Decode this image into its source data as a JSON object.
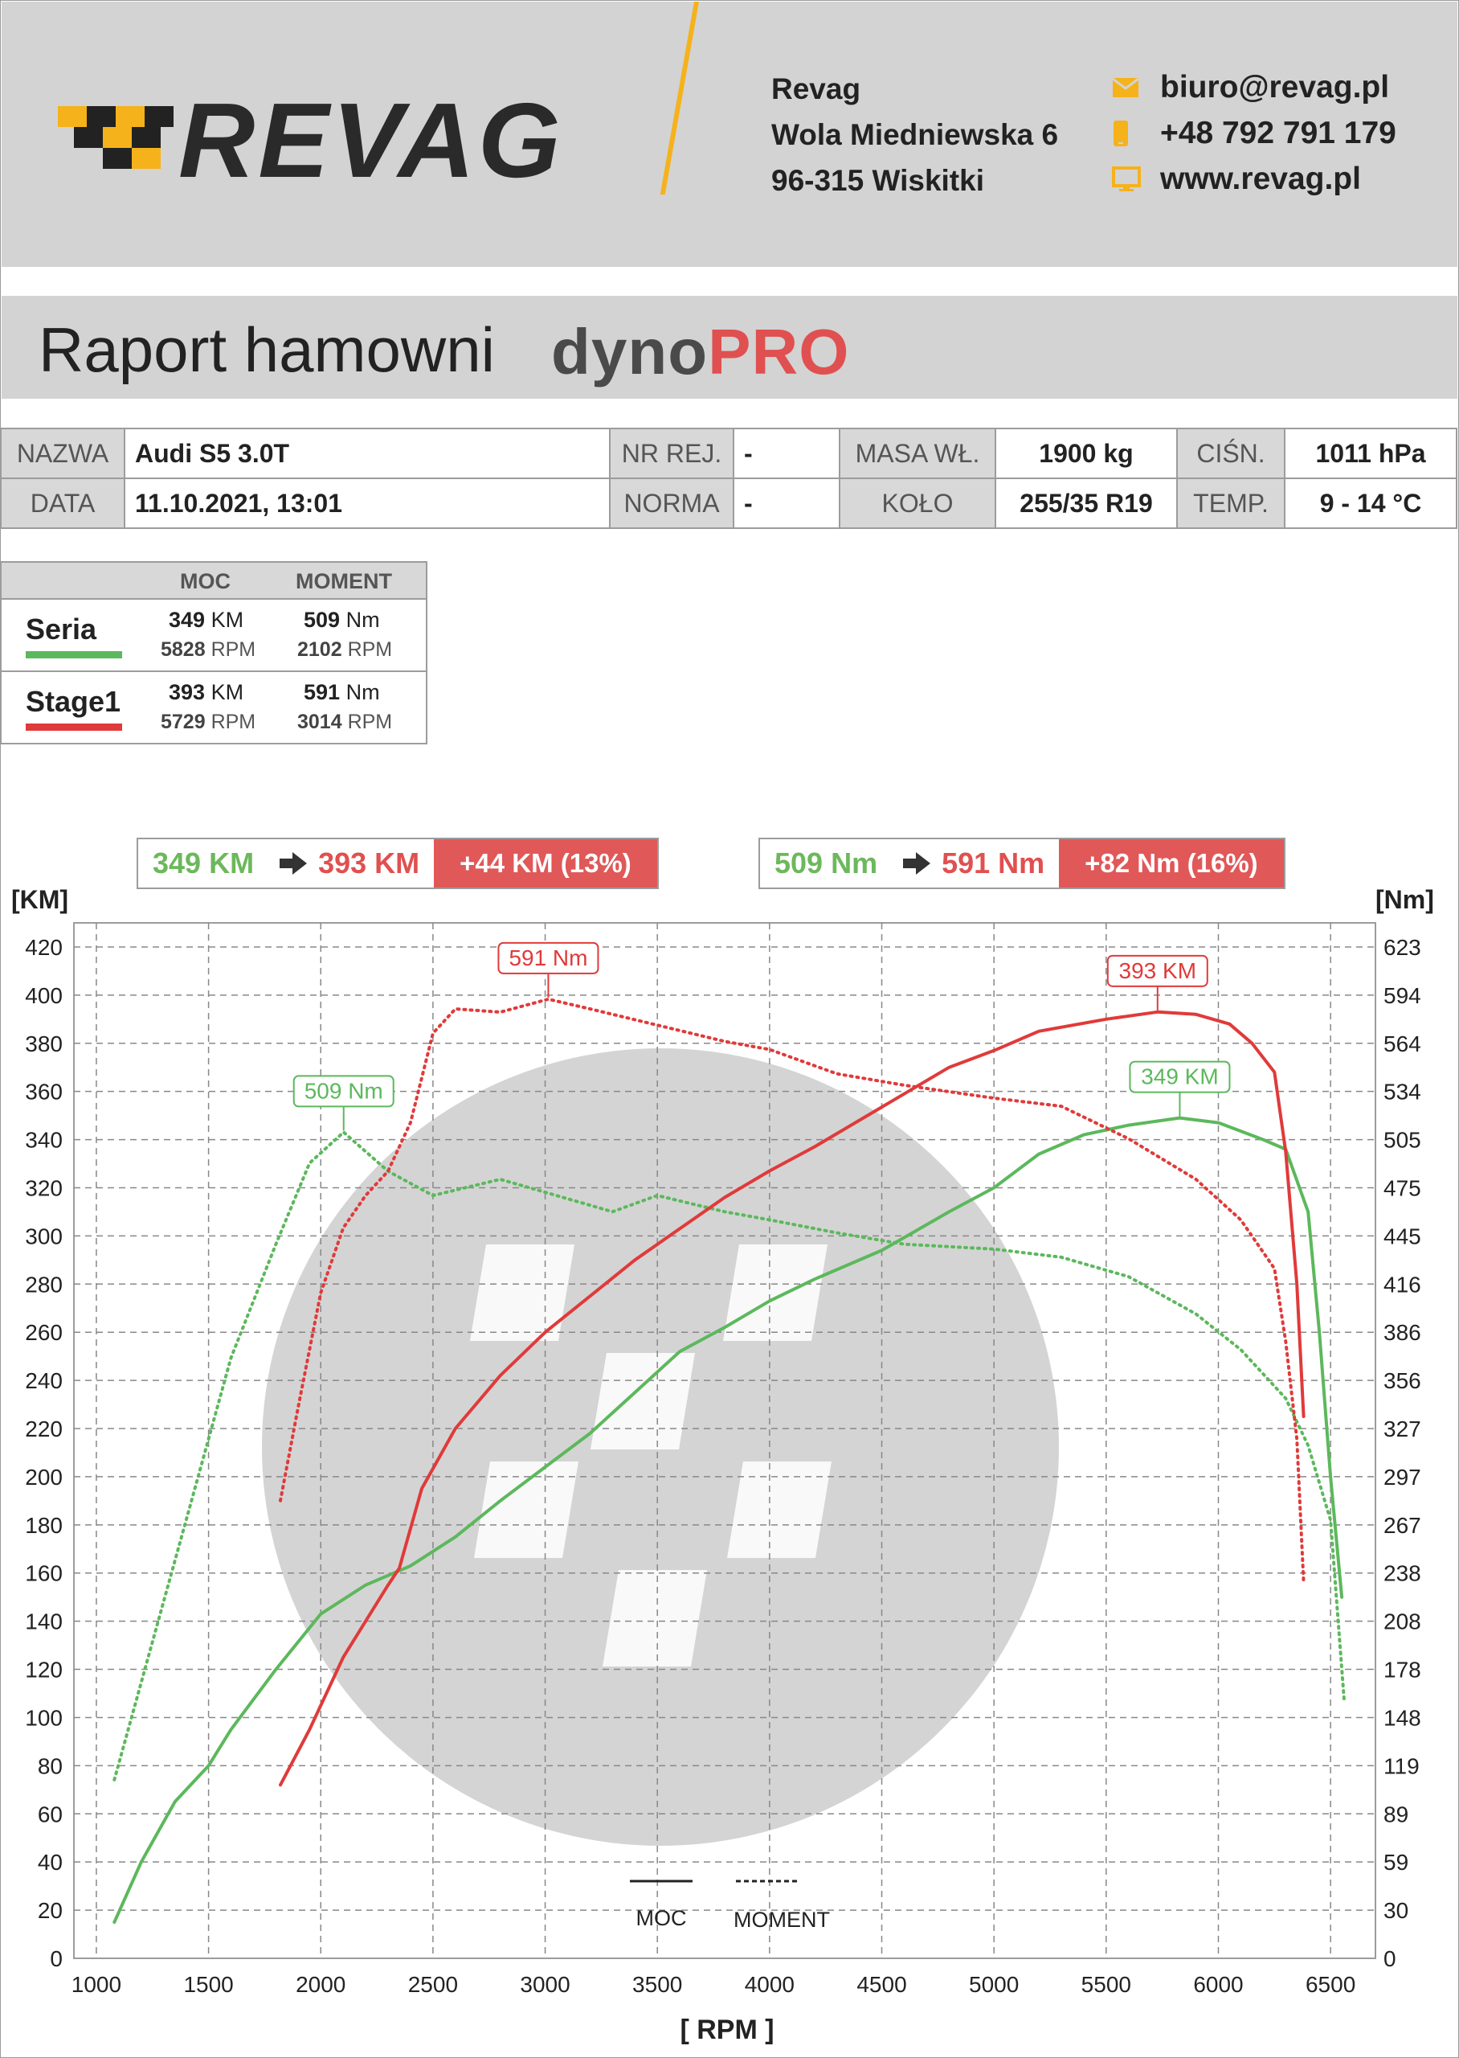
{
  "header": {
    "brand": "REVAG",
    "address": [
      "Revag",
      "Wola Miedniewska 6",
      "96-315 Wiskitki"
    ],
    "email": "biuro@revag.pl",
    "phone": "+48 792 791 179",
    "website": "www.revag.pl",
    "accent_color": "#f5b21b"
  },
  "report": {
    "title": "Raport hamowni",
    "product_a": "dyno",
    "product_b": "PRO"
  },
  "info": {
    "nazwa_label": "NAZWA",
    "nazwa": "Audi S5 3.0T",
    "nrrej_label": "NR REJ.",
    "nrrej": "-",
    "masa_label": "MASA WŁ.",
    "masa": "1900 kg",
    "cisn_label": "CIŚN.",
    "cisn": "1011 hPa",
    "data_label": "DATA",
    "data": "11.10.2021, 13:01",
    "norma_label": "NORMA",
    "norma": "-",
    "kolo_label": "KOŁO",
    "kolo": "255/35 R19",
    "temp_label": "TEMP.",
    "temp": "9 - 14 °C"
  },
  "legend": {
    "moc_header": "MOC",
    "moment_header": "MOMENT",
    "rows": [
      {
        "name": "Seria",
        "color": "#5cb85c",
        "power": "349",
        "power_unit": "KM",
        "power_rpm": "5828",
        "torque": "509",
        "torque_unit": "Nm",
        "torque_rpm": "2102",
        "rpm_unit": "RPM"
      },
      {
        "name": "Stage1",
        "color": "#e03a3a",
        "power": "393",
        "power_unit": "KM",
        "power_rpm": "5729",
        "torque": "591",
        "torque_unit": "Nm",
        "torque_rpm": "3014",
        "rpm_unit": "RPM"
      }
    ]
  },
  "summary": {
    "power": {
      "from": "349 KM",
      "to": "393 KM",
      "gain": "+44 KM  (13%)"
    },
    "torque": {
      "from": "509 Nm",
      "to": "591 Nm",
      "gain": "+82 Nm  (16%)"
    }
  },
  "chart_data": {
    "type": "line",
    "xlabel": "[ RPM ]",
    "ylabel_left": "[KM]",
    "ylabel_right": "[Nm]",
    "xlim": [
      900,
      6700
    ],
    "xticks": [
      1000,
      1500,
      2000,
      2500,
      3000,
      3500,
      4000,
      4500,
      5000,
      5500,
      6000,
      6500
    ],
    "ylim_left": [
      0,
      430
    ],
    "yticks_left": [
      0,
      20,
      40,
      60,
      80,
      100,
      120,
      140,
      160,
      180,
      200,
      220,
      240,
      260,
      280,
      300,
      320,
      340,
      360,
      380,
      400,
      420
    ],
    "yticks_right_labels": [
      "0",
      "30",
      "59",
      "89",
      "119",
      "148",
      "178",
      "208",
      "238",
      "267",
      "297",
      "327",
      "356",
      "386",
      "416",
      "445",
      "475",
      "505",
      "534",
      "564",
      "594",
      "623"
    ],
    "grid": true,
    "line_legend": {
      "solid": "MOC",
      "dotted": "MOMENT"
    },
    "series": [
      {
        "name": "Seria",
        "metric": "MOC",
        "unit": "KM",
        "color": "#5cb85c",
        "style": "solid",
        "x": [
          1080,
          1200,
          1350,
          1500,
          1600,
          1800,
          2000,
          2200,
          2400,
          2600,
          2800,
          3000,
          3200,
          3400,
          3600,
          3800,
          4000,
          4200,
          4500,
          4800,
          5000,
          5200,
          5400,
          5600,
          5828,
          6000,
          6200,
          6300,
          6400,
          6450,
          6500,
          6550
        ],
        "y": [
          15,
          40,
          65,
          80,
          95,
          120,
          143,
          155,
          163,
          175,
          190,
          204,
          218,
          235,
          252,
          262,
          273,
          282,
          294,
          310,
          320,
          334,
          342,
          346,
          349,
          347,
          340,
          336,
          310,
          260,
          200,
          150
        ]
      },
      {
        "name": "Seria",
        "metric": "MOMENT",
        "unit": "Nm",
        "color": "#5cb85c",
        "style": "dotted",
        "x": [
          1080,
          1200,
          1400,
          1600,
          1800,
          1950,
          2102,
          2300,
          2500,
          2800,
          3000,
          3300,
          3500,
          3800,
          4000,
          4300,
          4600,
          5000,
          5300,
          5600,
          5900,
          6100,
          6300,
          6400,
          6500,
          6560
        ],
        "y": [
          110,
          170,
          270,
          370,
          440,
          490,
          509,
          485,
          470,
          480,
          472,
          460,
          470,
          460,
          455,
          447,
          440,
          437,
          432,
          420,
          397,
          375,
          345,
          316,
          270,
          160
        ]
      },
      {
        "name": "Stage1",
        "metric": "MOC",
        "unit": "KM",
        "color": "#e03a3a",
        "style": "solid",
        "x": [
          1820,
          1950,
          2100,
          2300,
          2350,
          2450,
          2600,
          2800,
          3000,
          3200,
          3400,
          3600,
          3800,
          4000,
          4200,
          4400,
          4600,
          4800,
          5000,
          5200,
          5500,
          5729,
          5900,
          6050,
          6150,
          6250,
          6300,
          6350,
          6380
        ],
        "y": [
          72,
          95,
          125,
          155,
          162,
          195,
          220,
          242,
          260,
          275,
          290,
          303,
          316,
          327,
          337,
          348,
          359,
          370,
          377,
          385,
          390,
          393,
          392,
          388,
          380,
          368,
          335,
          280,
          225
        ]
      },
      {
        "name": "Stage1",
        "metric": "MOMENT",
        "unit": "Nm",
        "color": "#e03a3a",
        "style": "dotted",
        "x": [
          1820,
          1900,
          2000,
          2100,
          2200,
          2300,
          2400,
          2500,
          2600,
          2800,
          3014,
          3200,
          3500,
          3800,
          4000,
          4300,
          4600,
          5000,
          5300,
          5600,
          5900,
          6100,
          6250,
          6300,
          6350,
          6380
        ],
        "y": [
          282,
          340,
          410,
          450,
          470,
          485,
          515,
          570,
          585,
          583,
          591,
          585,
          575,
          565,
          560,
          545,
          538,
          530,
          525,
          505,
          480,
          455,
          425,
          380,
          320,
          232
        ]
      }
    ],
    "annotations": [
      {
        "text": "591 Nm",
        "series": "Stage1",
        "metric": "MOMENT",
        "x": 3014,
        "y": 591
      },
      {
        "text": "393 KM",
        "series": "Stage1",
        "metric": "MOC",
        "x": 5729,
        "y": 393
      },
      {
        "text": "509 Nm",
        "series": "Seria",
        "metric": "MOMENT",
        "x": 2102,
        "y": 509
      },
      {
        "text": "349 KM",
        "series": "Seria",
        "metric": "MOC",
        "x": 5828,
        "y": 349
      }
    ]
  }
}
